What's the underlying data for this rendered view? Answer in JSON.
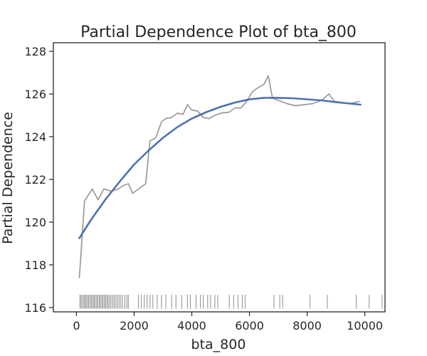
{
  "chart_data": {
    "type": "line",
    "title": "Partial Dependence Plot of bta_800",
    "xlabel": "bta_800",
    "ylabel": "Partial Dependence",
    "xlim": [
      -800,
      10700
    ],
    "ylim": [
      115.8,
      128.4
    ],
    "xticks": [
      0,
      2000,
      4000,
      6000,
      8000,
      10000
    ],
    "yticks": [
      116,
      118,
      120,
      122,
      124,
      126,
      128
    ],
    "grid": false,
    "series": [
      {
        "style": "raw",
        "color": "#999999",
        "x": [
          100,
          280,
          550,
          750,
          950,
          1200,
          1450,
          1600,
          1800,
          1950,
          2200,
          2400,
          2550,
          2750,
          2950,
          3100,
          3300,
          3500,
          3700,
          3850,
          4000,
          4200,
          4400,
          4600,
          4800,
          5000,
          5300,
          5500,
          5700,
          5900,
          6100,
          6300,
          6500,
          6650,
          6800,
          7000,
          7300,
          7600,
          7900,
          8200,
          8500,
          8750,
          8950,
          9200,
          9500,
          9800
        ],
        "y": [
          117.4,
          121.0,
          121.55,
          121.05,
          121.55,
          121.45,
          121.55,
          121.7,
          121.8,
          121.35,
          121.6,
          121.8,
          123.8,
          123.95,
          124.7,
          124.85,
          124.9,
          125.1,
          125.05,
          125.5,
          125.25,
          125.2,
          124.9,
          124.85,
          125.0,
          125.1,
          125.15,
          125.35,
          125.35,
          125.65,
          126.1,
          126.3,
          126.45,
          126.85,
          125.8,
          125.7,
          125.55,
          125.45,
          125.5,
          125.55,
          125.7,
          126.0,
          125.65,
          125.6,
          125.55,
          125.65
        ]
      },
      {
        "style": "smooth",
        "color": "#4c72b0",
        "x": [
          100,
          500,
          1000,
          1500,
          2000,
          2500,
          3000,
          3500,
          4000,
          4500,
          5000,
          5500,
          6000,
          6500,
          7000,
          7500,
          8000,
          8500,
          9000,
          9500,
          9850
        ],
        "y": [
          119.25,
          120.1,
          121.05,
          121.9,
          122.7,
          123.35,
          123.95,
          124.45,
          124.85,
          125.15,
          125.4,
          125.6,
          125.75,
          125.82,
          125.82,
          125.8,
          125.75,
          125.7,
          125.62,
          125.55,
          125.5
        ]
      }
    ],
    "rug": [
      120,
      160,
      210,
      260,
      300,
      340,
      390,
      430,
      480,
      520,
      570,
      610,
      650,
      700,
      740,
      790,
      830,
      880,
      920,
      970,
      1010,
      1060,
      1100,
      1150,
      1200,
      1260,
      1310,
      1370,
      1420,
      1480,
      1540,
      1600,
      1680,
      1750,
      1800,
      2150,
      2250,
      2350,
      2450,
      2550,
      2650,
      2800,
      2950,
      3100,
      3300,
      3450,
      3650,
      3850,
      3950,
      4150,
      4300,
      4400,
      4550,
      4650,
      4800,
      4900,
      5300,
      5450,
      5600,
      5750,
      5850,
      6850,
      7050,
      7150,
      8100,
      8700,
      9700,
      10150,
      10600
    ]
  }
}
